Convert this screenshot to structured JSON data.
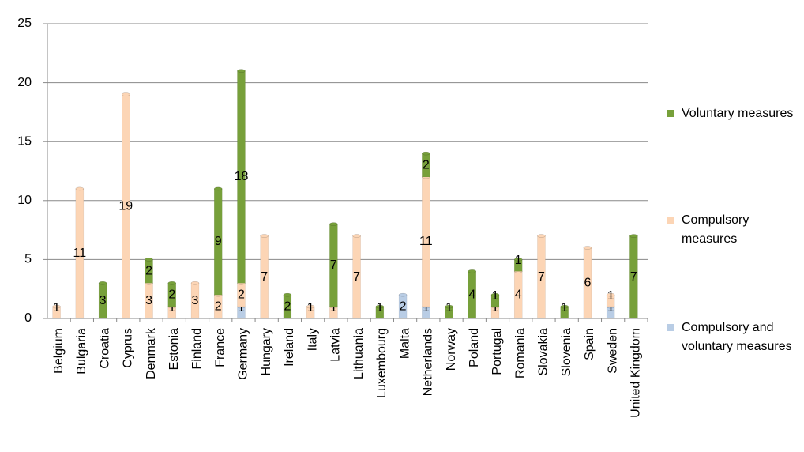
{
  "chart_data": {
    "type": "bar",
    "stacked": true,
    "categories": [
      "Belgium",
      "Bulgaria",
      "Croatia",
      "Cyprus",
      "Denmark",
      "Estonia",
      "Finland",
      "France",
      "Germany",
      "Hungary",
      "Ireland",
      "Italy",
      "Latvia",
      "Lithuania",
      "Luxembourg",
      "Malta",
      "Netherlands",
      "Norway",
      "Poland",
      "Portugal",
      "Romania",
      "Slovakia",
      "Slovenia",
      "Spain",
      "Sweden",
      "United Kingdom"
    ],
    "series": [
      {
        "name": "Compulsory and voluntary measures",
        "color": "#b9cde5",
        "values": [
          null,
          null,
          null,
          null,
          null,
          null,
          null,
          null,
          1,
          null,
          null,
          null,
          null,
          null,
          null,
          2,
          1,
          null,
          null,
          null,
          null,
          null,
          null,
          null,
          1,
          null
        ]
      },
      {
        "name": "Compulsory measures",
        "color": "#fcd5b5",
        "values": [
          1,
          11,
          null,
          19,
          3,
          1,
          3,
          2,
          2,
          7,
          null,
          1,
          1,
          7,
          null,
          null,
          11,
          null,
          null,
          1,
          4,
          7,
          null,
          6,
          1,
          null
        ]
      },
      {
        "name": "Voluntary measures",
        "color": "#77a03a",
        "values": [
          null,
          null,
          3,
          null,
          2,
          2,
          null,
          9,
          18,
          null,
          2,
          null,
          7,
          null,
          1,
          null,
          2,
          1,
          4,
          1,
          1,
          null,
          1,
          null,
          null,
          7
        ]
      }
    ],
    "ylim": [
      0,
      25
    ],
    "yticks": [
      0,
      5,
      10,
      15,
      20,
      25
    ],
    "grid": true,
    "legend": "right"
  }
}
